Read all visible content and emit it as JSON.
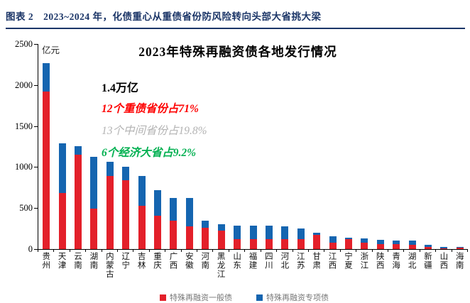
{
  "header": {
    "title": "图表 2　2023~2024 年，化债重心从重债省份防风险转向头部大省挑大梁"
  },
  "chart": {
    "title": "2023年特殊再融资债各地发行情况",
    "unit_label": "亿元",
    "annotations": {
      "total": "1.4万亿",
      "heavy_debt": "12个重债省份占71%",
      "middle": "13个中间省份占19.8%",
      "big_provinces": "6个经济大省占9.2%"
    },
    "colors": {
      "header_navy": "#1c3668",
      "red_series": "#e3202a",
      "blue_series": "#1565b0",
      "annotation_red": "#fe0000",
      "annotation_gray": "#b3b3b3",
      "annotation_green": "#00b050"
    }
  },
  "chart_data": {
    "type": "bar",
    "stacked": true,
    "title": "2023年特殊再融资债各地发行情况",
    "ylabel": "亿元",
    "ylim": [
      0,
      2500
    ],
    "yticks": [
      0,
      500,
      1000,
      1500,
      2000,
      2500
    ],
    "grid": false,
    "legend_position": "bottom",
    "categories": [
      "贵州",
      "天津",
      "云南",
      "湖南",
      "内蒙古",
      "辽宁",
      "吉林",
      "重庆",
      "广西",
      "安徽",
      "河南",
      "黑龙江",
      "山东",
      "福建",
      "四川",
      "河北",
      "江苏",
      "甘肃",
      "江西",
      "宁夏",
      "浙江",
      "陕西",
      "青海",
      "湖北",
      "新疆",
      "山西",
      "海南"
    ],
    "series": [
      {
        "name": "特殊再融资一般债",
        "color": "#e3202a",
        "values": [
          1918,
          680,
          1150,
          497,
          895,
          838,
          530,
          410,
          345,
          280,
          260,
          226,
          123,
          122,
          120,
          120,
          123,
          175,
          82,
          120,
          80,
          65,
          61,
          52,
          26,
          10,
          15
        ]
      },
      {
        "name": "特殊再融资专项债",
        "color": "#1565b0",
        "values": [
          346,
          606,
          106,
          625,
          172,
          168,
          363,
          312,
          282,
          344,
          87,
          78,
          166,
          164,
          164,
          161,
          127,
          27,
          70,
          18,
          52,
          52,
          47,
          53,
          30,
          16,
          9
        ]
      }
    ],
    "totals": [
      2264,
      1286,
      1256,
      1122,
      1067,
      1006,
      893,
      722,
      627,
      624,
      347,
      304,
      289,
      286,
      284,
      281,
      250,
      202,
      152,
      138,
      132,
      117,
      108,
      105,
      56,
      26,
      24
    ]
  }
}
